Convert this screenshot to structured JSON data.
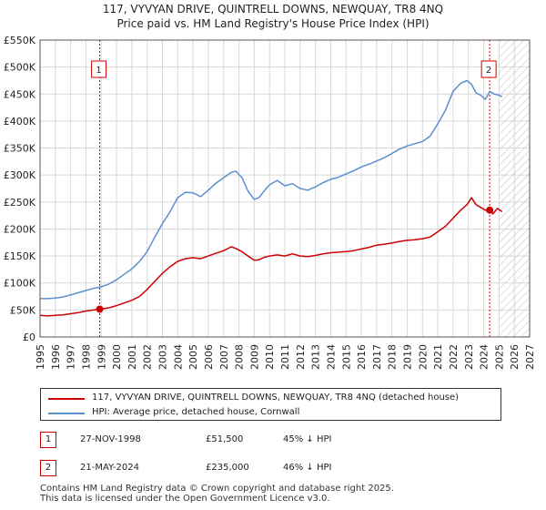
{
  "chart_data": {
    "type": "line",
    "title": "117, VYVYAN DRIVE, QUINTRELL DOWNS, NEWQUAY, TR8 4NQ",
    "subtitle": "Price paid vs. HM Land Registry's House Price Index (HPI)",
    "xlabel": "",
    "ylabel": "",
    "xlim": [
      1995,
      2027
    ],
    "ylim": [
      0,
      550000
    ],
    "x_ticks": [
      1995,
      1996,
      1997,
      1998,
      1999,
      2000,
      2001,
      2002,
      2003,
      2004,
      2005,
      2006,
      2007,
      2008,
      2009,
      2010,
      2011,
      2012,
      2013,
      2014,
      2015,
      2016,
      2017,
      2018,
      2019,
      2020,
      2021,
      2022,
      2023,
      2024,
      2025,
      2026,
      2027
    ],
    "y_ticks": [
      {
        "value": 0,
        "label": "£0"
      },
      {
        "value": 50000,
        "label": "£50K"
      },
      {
        "value": 100000,
        "label": "£100K"
      },
      {
        "value": 150000,
        "label": "£150K"
      },
      {
        "value": 200000,
        "label": "£200K"
      },
      {
        "value": 250000,
        "label": "£250K"
      },
      {
        "value": 300000,
        "label": "£300K"
      },
      {
        "value": 350000,
        "label": "£350K"
      },
      {
        "value": 400000,
        "label": "£400K"
      },
      {
        "value": 450000,
        "label": "£450K"
      },
      {
        "value": 500000,
        "label": "£500K"
      },
      {
        "value": 550000,
        "label": "£550K"
      }
    ],
    "grid": true,
    "forecast_hatch_from": 2025.0,
    "series": [
      {
        "name": "117, VYVYAN DRIVE, QUINTRELL DOWNS, NEWQUAY, TR8 4NQ (detached house)",
        "color": "#cc0000",
        "x": [
          1995.0,
          1995.5,
          1996.0,
          1996.5,
          1997.0,
          1997.5,
          1998.0,
          1998.5,
          1998.9,
          1999.5,
          2000.0,
          2000.5,
          2001.0,
          2001.5,
          2002.0,
          2002.5,
          2003.0,
          2003.5,
          2004.0,
          2004.5,
          2005.0,
          2005.5,
          2006.0,
          2006.5,
          2007.0,
          2007.5,
          2007.8,
          2008.2,
          2008.6,
          2009.0,
          2009.3,
          2009.7,
          2010.0,
          2010.5,
          2011.0,
          2011.5,
          2012.0,
          2012.5,
          2013.0,
          2013.5,
          2014.0,
          2014.5,
          2015.0,
          2015.5,
          2016.0,
          2016.5,
          2017.0,
          2017.5,
          2018.0,
          2018.5,
          2019.0,
          2019.5,
          2020.0,
          2020.5,
          2021.0,
          2021.5,
          2022.0,
          2022.5,
          2022.9,
          2023.2,
          2023.5,
          2023.8,
          2024.1,
          2024.39,
          2024.6,
          2024.9,
          2025.2
        ],
        "y": [
          40000,
          39000,
          40000,
          41000,
          43000,
          45000,
          48000,
          50000,
          51500,
          54000,
          58000,
          63000,
          68000,
          75000,
          88000,
          103000,
          118000,
          130000,
          140000,
          145000,
          147000,
          145000,
          150000,
          155000,
          160000,
          167000,
          164000,
          158000,
          150000,
          142000,
          143000,
          148000,
          150000,
          152000,
          150000,
          154000,
          150000,
          149000,
          151000,
          154000,
          156000,
          157000,
          158000,
          160000,
          163000,
          166000,
          170000,
          172000,
          174000,
          177000,
          179000,
          180000,
          182000,
          185000,
          195000,
          205000,
          220000,
          235000,
          245000,
          258000,
          245000,
          240000,
          235000,
          235000,
          228000,
          238000,
          232000
        ]
      },
      {
        "name": "HPI: Average price, detached house, Cornwall",
        "color": "#5b8fd0",
        "x": [
          1995.0,
          1995.5,
          1996.0,
          1996.5,
          1997.0,
          1997.5,
          1998.0,
          1998.5,
          1999.0,
          1999.5,
          2000.0,
          2000.5,
          2001.0,
          2001.5,
          2002.0,
          2002.5,
          2003.0,
          2003.5,
          2004.0,
          2004.5,
          2005.0,
          2005.5,
          2006.0,
          2006.5,
          2007.0,
          2007.5,
          2007.8,
          2008.2,
          2008.6,
          2009.0,
          2009.3,
          2009.7,
          2010.0,
          2010.5,
          2011.0,
          2011.5,
          2012.0,
          2012.5,
          2013.0,
          2013.5,
          2014.0,
          2014.5,
          2015.0,
          2015.5,
          2016.0,
          2016.5,
          2017.0,
          2017.5,
          2018.0,
          2018.5,
          2019.0,
          2019.5,
          2020.0,
          2020.5,
          2021.0,
          2021.5,
          2022.0,
          2022.5,
          2022.9,
          2023.2,
          2023.5,
          2023.8,
          2024.1,
          2024.4,
          2024.7,
          2025.0,
          2025.2
        ],
        "y": [
          71000,
          71000,
          72000,
          74000,
          78000,
          82000,
          86000,
          90000,
          93000,
          98000,
          106000,
          116000,
          126000,
          140000,
          158000,
          185000,
          210000,
          232000,
          258000,
          268000,
          267000,
          260000,
          272000,
          285000,
          295000,
          305000,
          307000,
          295000,
          270000,
          255000,
          258000,
          272000,
          282000,
          290000,
          280000,
          284000,
          275000,
          272000,
          278000,
          286000,
          292000,
          296000,
          302000,
          308000,
          315000,
          320000,
          326000,
          332000,
          340000,
          348000,
          354000,
          358000,
          362000,
          372000,
          395000,
          420000,
          455000,
          470000,
          475000,
          468000,
          452000,
          448000,
          440000,
          455000,
          450000,
          448000,
          445000
        ]
      }
    ],
    "sales": [
      {
        "marker": "1",
        "x": 1998.9,
        "y": 51500
      },
      {
        "marker": "2",
        "x": 2024.39,
        "y": 235000
      }
    ]
  },
  "legend": {
    "property_label": "117, VYVYAN DRIVE, QUINTRELL DOWNS, NEWQUAY, TR8 4NQ (detached house)",
    "hpi_label": "HPI: Average price, detached house, Cornwall"
  },
  "annotations": [
    {
      "marker": "1",
      "date": "27-NOV-1998",
      "price": "£51,500",
      "hpi": "45% ↓ HPI"
    },
    {
      "marker": "2",
      "date": "21-MAY-2024",
      "price": "£235,000",
      "hpi": "46% ↓ HPI"
    }
  ],
  "footer": {
    "line1": "Contains HM Land Registry data © Crown copyright and database right 2025.",
    "line2": "This data is licensed under the Open Government Licence v3.0."
  },
  "colors": {
    "property_line": "#cc0000",
    "hpi_line": "#5b8fd0",
    "grid": "#d8d8d8",
    "marker_border": "#cc0000"
  }
}
